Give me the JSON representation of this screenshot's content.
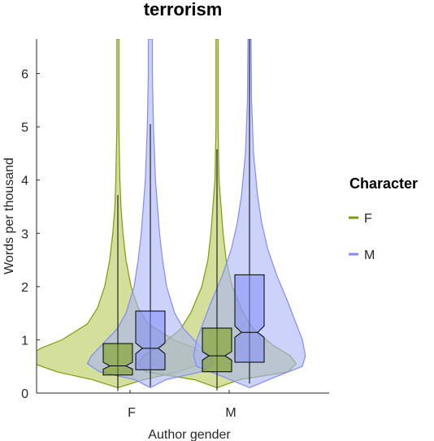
{
  "chart_data": {
    "type": "violin",
    "title": "terrorism",
    "xlabel": "Author gender",
    "ylabel": "Words per thousand",
    "ylim": [
      0,
      6.65
    ],
    "yticks": [
      0,
      1,
      2,
      3,
      4,
      5,
      6
    ],
    "categories": [
      "F",
      "M"
    ],
    "legend": {
      "title": "Character",
      "position": "right",
      "entries": [
        {
          "label": "F",
          "color": "#7a9d0a"
        },
        {
          "label": "M",
          "color": "#7f8cf5"
        }
      ]
    },
    "series": [
      {
        "name": "F",
        "color": "#7a9d0a",
        "fill": "#b7c95a",
        "groups": [
          {
            "category": "F",
            "violin_profile": [
              [
                0.1,
                0.0
              ],
              [
                0.25,
                0.25
              ],
              [
                0.4,
                0.6
              ],
              [
                0.55,
                0.82
              ],
              [
                0.7,
                0.88
              ],
              [
                0.85,
                0.75
              ],
              [
                1.0,
                0.55
              ],
              [
                1.3,
                0.3
              ],
              [
                1.6,
                0.2
              ],
              [
                2.0,
                0.13
              ],
              [
                2.5,
                0.08
              ],
              [
                3.0,
                0.05
              ],
              [
                3.5,
                0.03
              ],
              [
                4.0,
                0.02
              ],
              [
                5.0,
                0.01
              ],
              [
                6.65,
                0.01
              ]
            ],
            "box": {
              "q1": 0.34,
              "median": 0.51,
              "q3": 0.93,
              "notch_low": 0.45,
              "notch_high": 0.58,
              "whisker_low": 0.04,
              "whisker_high": 3.72
            }
          },
          {
            "category": "M",
            "violin_profile": [
              [
                0.1,
                0.0
              ],
              [
                0.25,
                0.22
              ],
              [
                0.4,
                0.7
              ],
              [
                0.55,
                0.78
              ],
              [
                0.7,
                0.72
              ],
              [
                0.9,
                0.55
              ],
              [
                1.2,
                0.36
              ],
              [
                1.5,
                0.26
              ],
              [
                2.0,
                0.15
              ],
              [
                2.5,
                0.09
              ],
              [
                3.0,
                0.06
              ],
              [
                3.5,
                0.04
              ],
              [
                4.0,
                0.02
              ],
              [
                5.0,
                0.01
              ],
              [
                6.65,
                0.01
              ]
            ],
            "box": {
              "q1": 0.4,
              "median": 0.7,
              "q3": 1.22,
              "notch_low": 0.62,
              "notch_high": 0.78,
              "whisker_low": 0.05,
              "whisker_high": 4.58
            }
          }
        ]
      },
      {
        "name": "M",
        "color": "#7f8cf5",
        "fill": "#aab4f7",
        "groups": [
          {
            "category": "F",
            "violin_profile": [
              [
                0.1,
                0.0
              ],
              [
                0.25,
                0.15
              ],
              [
                0.4,
                0.5
              ],
              [
                0.55,
                0.62
              ],
              [
                0.7,
                0.58
              ],
              [
                0.9,
                0.48
              ],
              [
                1.2,
                0.33
              ],
              [
                1.5,
                0.24
              ],
              [
                2.0,
                0.16
              ],
              [
                2.5,
                0.12
              ],
              [
                3.0,
                0.09
              ],
              [
                4.0,
                0.05
              ],
              [
                5.0,
                0.03
              ],
              [
                6.0,
                0.02
              ],
              [
                6.65,
                0.02
              ]
            ],
            "box": {
              "q1": 0.44,
              "median": 0.84,
              "q3": 1.54,
              "notch_low": 0.74,
              "notch_high": 0.94,
              "whisker_low": 0.12,
              "whisker_high": 5.05
            }
          },
          {
            "category": "M",
            "violin_profile": [
              [
                0.1,
                0.0
              ],
              [
                0.3,
                0.25
              ],
              [
                0.5,
                0.52
              ],
              [
                0.7,
                0.55
              ],
              [
                1.0,
                0.52
              ],
              [
                1.3,
                0.46
              ],
              [
                1.7,
                0.38
              ],
              [
                2.2,
                0.27
              ],
              [
                2.7,
                0.18
              ],
              [
                3.2,
                0.12
              ],
              [
                3.7,
                0.08
              ],
              [
                4.5,
                0.04
              ],
              [
                5.5,
                0.02
              ],
              [
                6.65,
                0.015
              ]
            ],
            "box": {
              "q1": 0.58,
              "median": 1.14,
              "q3": 2.22,
              "notch_low": 1.05,
              "notch_high": 1.26,
              "whisker_low": 0.18,
              "whisker_high": 6.65
            }
          }
        ]
      }
    ]
  }
}
